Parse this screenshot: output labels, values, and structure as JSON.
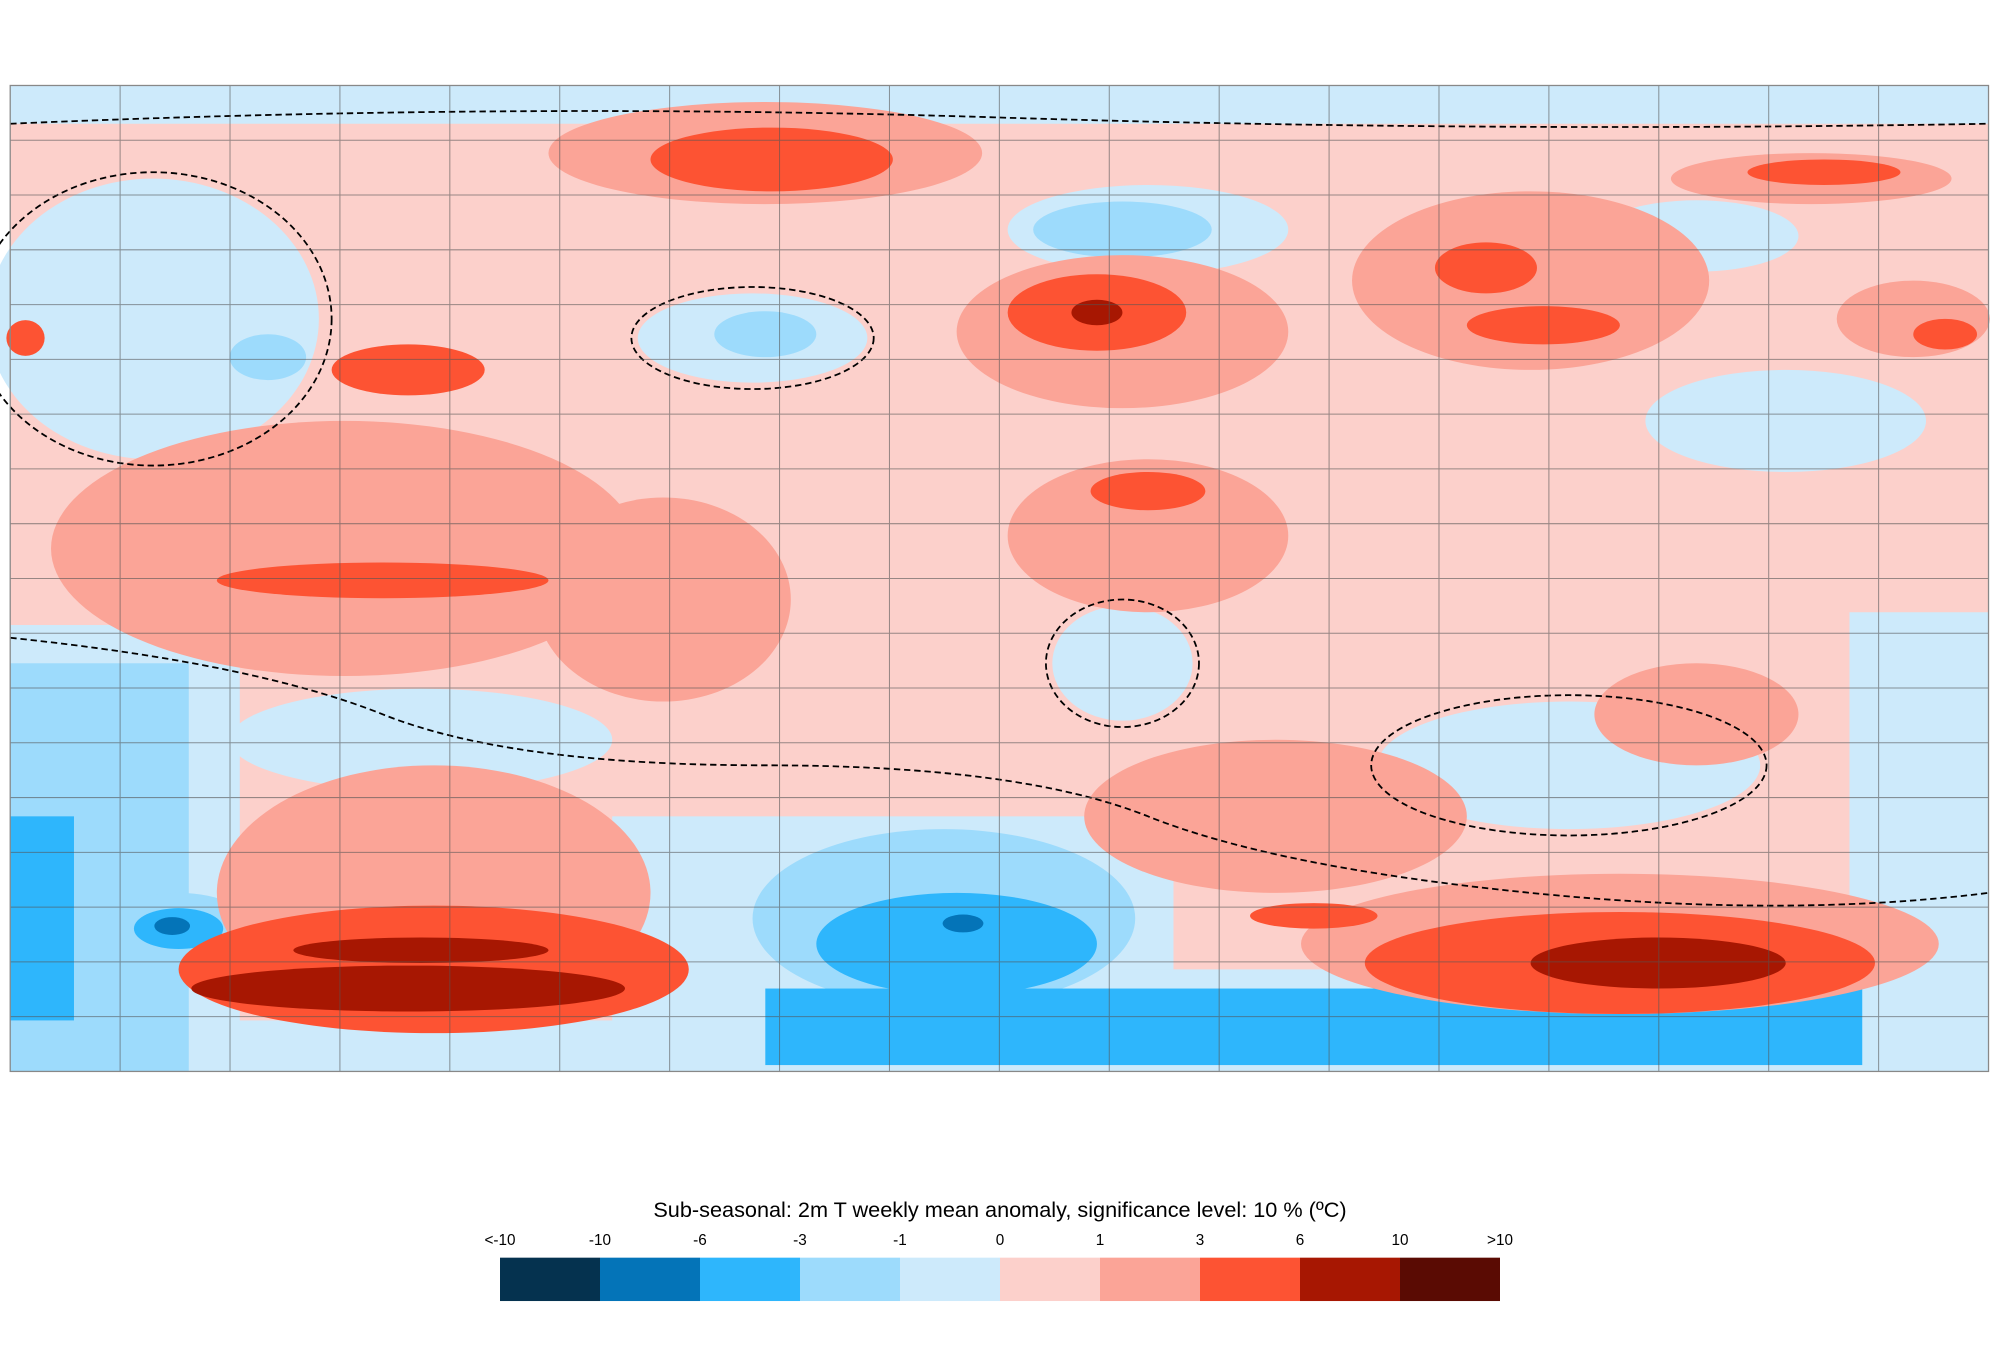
{
  "legend": {
    "title": "Sub-seasonal: 2m T weekly mean anomaly, significance level: 10 % (ºC)",
    "labels": [
      "<-10",
      "-10",
      "-6",
      "-3",
      "-1",
      "0",
      "1",
      "3",
      "6",
      "10",
      ">10"
    ],
    "colors": [
      "#05324f",
      "#0474b8",
      "#2eb6fc",
      "#9ddbfc",
      "#cdeafb",
      "#fcd0cb",
      "#fba497",
      "#fd5333",
      "#a71702",
      "#5a0b03"
    ]
  }
}
